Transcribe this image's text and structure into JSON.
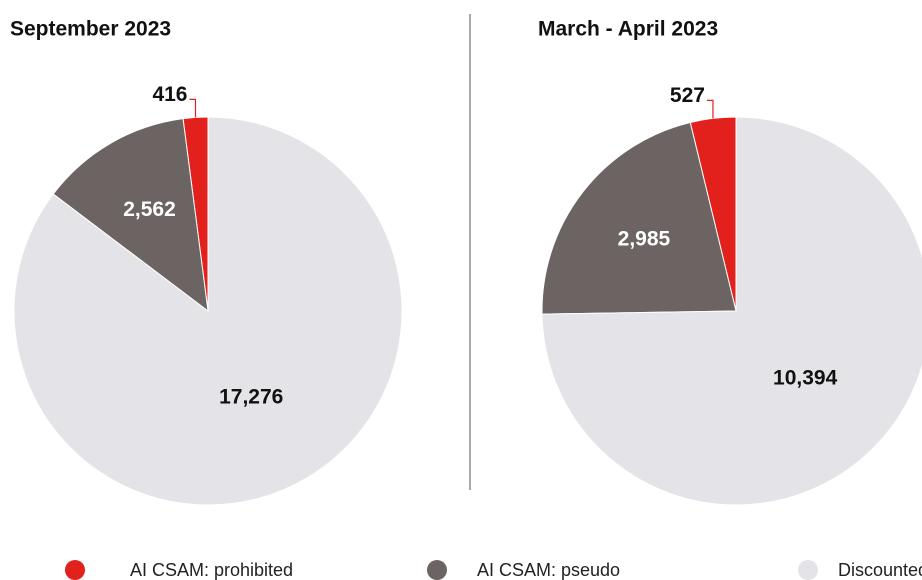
{
  "chart_data": [
    {
      "type": "pie",
      "title": "September 2023",
      "categories": [
        "AI CSAM: prohibited",
        "AI CSAM: pseudo",
        "Discounted"
      ],
      "values": [
        416,
        2562,
        17276
      ],
      "value_labels": [
        "416",
        "2,562",
        "17,276"
      ],
      "colors": [
        "#e2211c",
        "#6b6462",
        "#e4e3e7"
      ]
    },
    {
      "type": "pie",
      "title": "March - April 2023",
      "categories": [
        "AI CSAM: prohibited",
        "AI CSAM: pseudo",
        "Discounted"
      ],
      "values": [
        527,
        2985,
        10394
      ],
      "value_labels": [
        "527",
        "2,985",
        "10,394"
      ],
      "colors": [
        "#e2211c",
        "#6b6462",
        "#e4e3e7"
      ]
    }
  ]
}
